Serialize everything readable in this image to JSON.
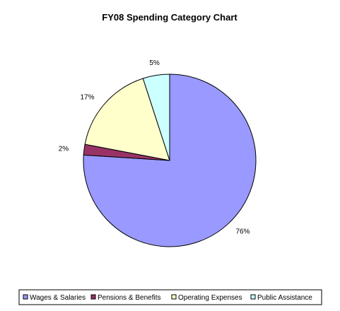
{
  "chart_data": {
    "type": "pie",
    "title": "FY08 Spending Category Chart",
    "categories": [
      "Wages & Salaries",
      "Pensions & Benefits",
      "Operating Expenses",
      "Public Assistance"
    ],
    "values": [
      76,
      2,
      17,
      5
    ],
    "labels": [
      "76%",
      "2%",
      "17%",
      "5%"
    ],
    "colors": [
      "#9999FF",
      "#993366",
      "#FFFFCC",
      "#CCFFFF"
    ],
    "start": "12 o'clock",
    "direction": "clockwise",
    "legend_position": "bottom",
    "legend": [
      "Wages & Salaries",
      "Pensions & Benefits",
      "Operating Expenses",
      "Public Assistance"
    ]
  }
}
